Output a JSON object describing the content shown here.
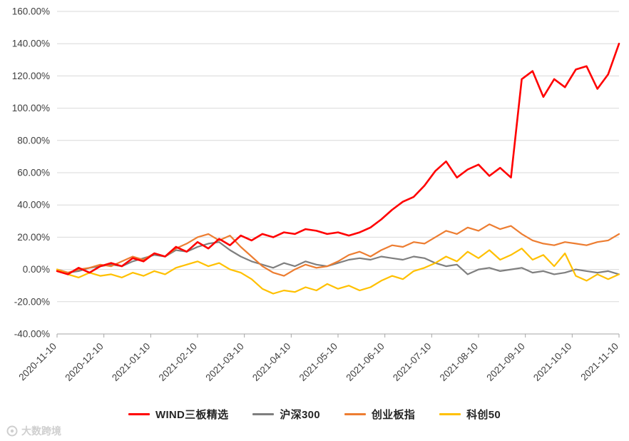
{
  "watermark": {
    "text": "大数跨境"
  },
  "chart_data": {
    "type": "line",
    "title": "",
    "xlabel": "",
    "ylabel": "",
    "grid": true,
    "legend_position": "bottom",
    "ylim": [
      -40,
      160
    ],
    "y_step": 20,
    "y_tick_values": [
      -40,
      -20,
      0,
      20,
      40,
      60,
      80,
      100,
      120,
      140,
      160
    ],
    "y_tick_labels": [
      "-40.00%",
      "-20.00%",
      "0.00%",
      "20.00%",
      "40.00%",
      "60.00%",
      "80.00%",
      "100.00%",
      "120.00%",
      "140.00%",
      "160.00%"
    ],
    "x_ticks": [
      "2020-11-10",
      "2020-12-10",
      "2021-01-10",
      "2021-02-10",
      "2021-03-10",
      "2021-04-10",
      "2021-05-10",
      "2021-06-10",
      "2021-07-10",
      "2021-08-10",
      "2021-09-10",
      "2021-10-10",
      "2021-11-10"
    ],
    "series": [
      {
        "name": "WIND三板精选",
        "color": "#FF0000",
        "width": 2.6,
        "values": [
          -1,
          -3,
          1,
          -2,
          2,
          4,
          2,
          7,
          5,
          10,
          8,
          14,
          11,
          17,
          13,
          19,
          15,
          21,
          18,
          22,
          20,
          23,
          22,
          25,
          24,
          22,
          23,
          21,
          23,
          26,
          31,
          37,
          42,
          45,
          52,
          61,
          67,
          57,
          62,
          65,
          58,
          63,
          57,
          118,
          123,
          107,
          118,
          113,
          124,
          126,
          112,
          121,
          140
        ]
      },
      {
        "name": "沪深300",
        "color": "#7F7F7F",
        "width": 2.2,
        "values": [
          0,
          -2,
          -1,
          1,
          2,
          3,
          2,
          5,
          7,
          9,
          8,
          12,
          11,
          14,
          16,
          17,
          12,
          8,
          5,
          3,
          1,
          4,
          2,
          5,
          3,
          2,
          4,
          6,
          7,
          6,
          8,
          7,
          6,
          8,
          7,
          4,
          2,
          3,
          -3,
          0,
          1,
          -1,
          0,
          1,
          -2,
          -1,
          -3,
          -2,
          0,
          -1,
          -2,
          -1,
          -3
        ]
      },
      {
        "name": "创业板指",
        "color": "#ED7D31",
        "width": 2.2,
        "values": [
          0,
          -2,
          0,
          1,
          3,
          2,
          5,
          8,
          6,
          10,
          8,
          13,
          16,
          20,
          22,
          18,
          21,
          14,
          8,
          2,
          -2,
          -4,
          0,
          3,
          1,
          2,
          5,
          9,
          11,
          8,
          12,
          15,
          14,
          17,
          16,
          20,
          24,
          22,
          26,
          24,
          28,
          25,
          27,
          22,
          18,
          16,
          15,
          17,
          16,
          15,
          17,
          18,
          22
        ]
      },
      {
        "name": "科创50",
        "color": "#FFC000",
        "width": 2.2,
        "values": [
          0,
          -3,
          -5,
          -2,
          -4,
          -3,
          -5,
          -2,
          -4,
          -1,
          -3,
          1,
          3,
          5,
          2,
          4,
          0,
          -2,
          -6,
          -12,
          -15,
          -13,
          -14,
          -11,
          -13,
          -9,
          -12,
          -10,
          -13,
          -11,
          -7,
          -4,
          -6,
          -1,
          1,
          4,
          8,
          5,
          11,
          7,
          12,
          6,
          9,
          13,
          6,
          9,
          2,
          10,
          -4,
          -7,
          -3,
          -6,
          -3
        ]
      }
    ],
    "colors": {
      "gridline": "#d9d9d9",
      "axis_line": "#a6a6a6",
      "tick_label": "#404040"
    }
  }
}
